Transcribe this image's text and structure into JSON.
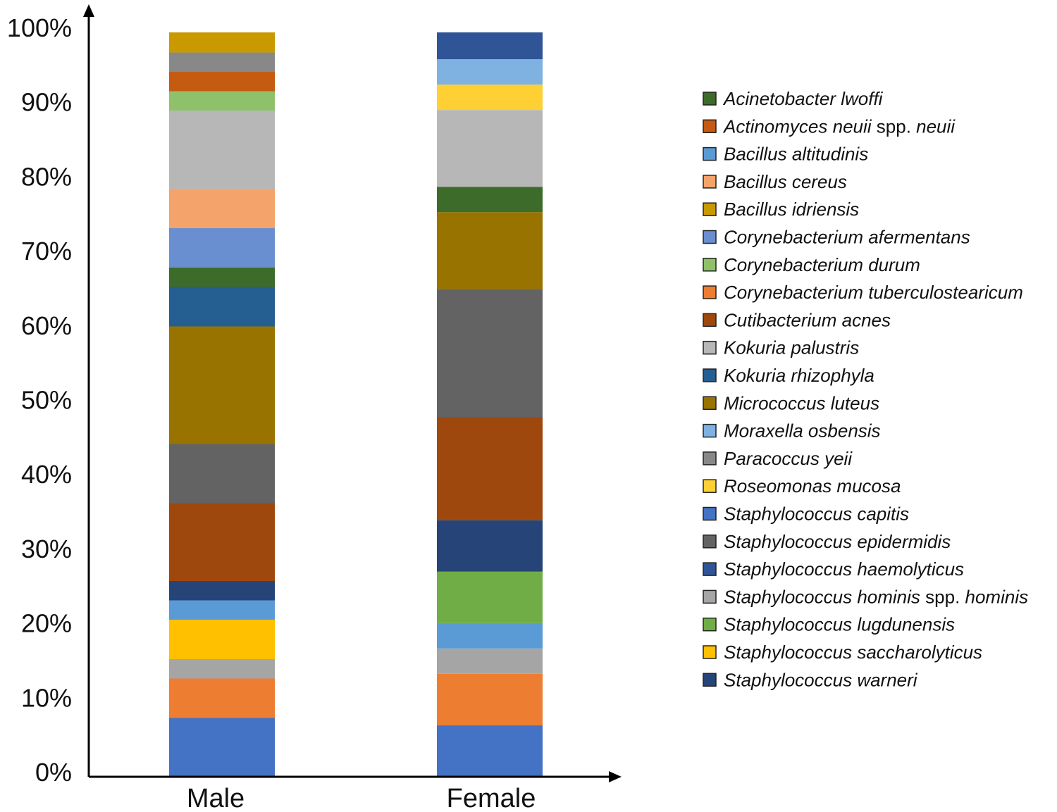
{
  "chart_data": {
    "type": "bar",
    "stacked": true,
    "normalized": true,
    "categories": [
      "Male",
      "Female"
    ],
    "yticks": [
      "0%",
      "10%",
      "20%",
      "30%",
      "40%",
      "50%",
      "60%",
      "70%",
      "80%",
      "90%",
      "100%"
    ],
    "ylim": [
      0,
      100
    ],
    "grid": false,
    "legend_position": "right",
    "legend": [
      {
        "name": "Acinetobacter lwoffi",
        "color": "#3d6b2a"
      },
      {
        "name": "Actinomyces neuii spp. neuii",
        "color": "#c55a11"
      },
      {
        "name": "Bacillus altitudinis",
        "color": "#5b9bd5"
      },
      {
        "name": "Bacillus cereus",
        "color": "#f4a46b"
      },
      {
        "name": "Bacillus idriensis",
        "color": "#c99a00"
      },
      {
        "name": "Corynebacterium afermentans",
        "color": "#6a8fd0"
      },
      {
        "name": "Corynebacterium durum",
        "color": "#8fc16a"
      },
      {
        "name": "Corynebacterium tuberculostearicum",
        "color": "#ed7d31"
      },
      {
        "name": "Cutibacterium acnes",
        "color": "#9e480e"
      },
      {
        "name": "Kokuria palustris",
        "color": "#b7b7b7"
      },
      {
        "name": "Kokuria rhizophyla",
        "color": "#255e91"
      },
      {
        "name": "Micrococcus luteus",
        "color": "#997300"
      },
      {
        "name": "Moraxella osbensis",
        "color": "#7fb2e0"
      },
      {
        "name": "Paracoccus yeii",
        "color": "#888888"
      },
      {
        "name": "Roseomonas mucosa",
        "color": "#ffd033"
      },
      {
        "name": "Staphylococcus capitis",
        "color": "#4472c4"
      },
      {
        "name": "Staphylococcus epidermidis",
        "color": "#636363"
      },
      {
        "name": "Staphylococcus haemolyticus",
        "color": "#2f5597"
      },
      {
        "name": "Staphylococcus hominis spp. hominis",
        "color": "#a5a5a5"
      },
      {
        "name": "Staphylococcus lugdunensis",
        "color": "#70ad47"
      },
      {
        "name": "Staphylococcus saccharolyticus",
        "color": "#ffc000"
      },
      {
        "name": "Staphylococcus warneri",
        "color": "#264478"
      }
    ],
    "series_by_category": {
      "Male": [
        {
          "name": "Staphylococcus capitis",
          "value": 7.9
        },
        {
          "name": "Corynebacterium tuberculostearicum",
          "value": 5.3
        },
        {
          "name": "Staphylococcus hominis spp. hominis",
          "value": 2.6
        },
        {
          "name": "Staphylococcus saccharolyticus",
          "value": 5.3
        },
        {
          "name": "Bacillus altitudinis",
          "value": 2.6
        },
        {
          "name": "Staphylococcus warneri",
          "value": 2.6
        },
        {
          "name": "Cutibacterium acnes",
          "value": 10.5
        },
        {
          "name": "Staphylococcus epidermidis",
          "value": 7.9
        },
        {
          "name": "Micrococcus luteus",
          "value": 15.8
        },
        {
          "name": "Kokuria rhizophyla",
          "value": 5.3
        },
        {
          "name": "Acinetobacter lwoffi",
          "value": 2.6
        },
        {
          "name": "Corynebacterium afermentans",
          "value": 5.3
        },
        {
          "name": "Bacillus cereus",
          "value": 5.3
        },
        {
          "name": "Kokuria palustris",
          "value": 10.5
        },
        {
          "name": "Corynebacterium durum",
          "value": 2.6
        },
        {
          "name": "Actinomyces neuii spp. neuii",
          "value": 2.6
        },
        {
          "name": "Paracoccus yeii",
          "value": 2.6
        },
        {
          "name": "Bacillus idriensis",
          "value": 2.7
        }
      ],
      "Female": [
        {
          "name": "Staphylococcus capitis",
          "value": 6.9
        },
        {
          "name": "Corynebacterium tuberculostearicum",
          "value": 6.9
        },
        {
          "name": "Staphylococcus hominis spp. hominis",
          "value": 3.4
        },
        {
          "name": "Bacillus altitudinis",
          "value": 3.4
        },
        {
          "name": "Staphylococcus lugdunensis",
          "value": 6.9
        },
        {
          "name": "Staphylococcus warneri",
          "value": 6.9
        },
        {
          "name": "Cutibacterium acnes",
          "value": 13.8
        },
        {
          "name": "Staphylococcus epidermidis",
          "value": 17.2
        },
        {
          "name": "Micrococcus luteus",
          "value": 10.3
        },
        {
          "name": "Acinetobacter lwoffi",
          "value": 3.4
        },
        {
          "name": "Kokuria palustris",
          "value": 10.3
        },
        {
          "name": "Roseomonas mucosa",
          "value": 3.4
        },
        {
          "name": "Moraxella osbensis",
          "value": 3.4
        },
        {
          "name": "Staphylococcus haemolyticus",
          "value": 3.6
        }
      ]
    }
  }
}
